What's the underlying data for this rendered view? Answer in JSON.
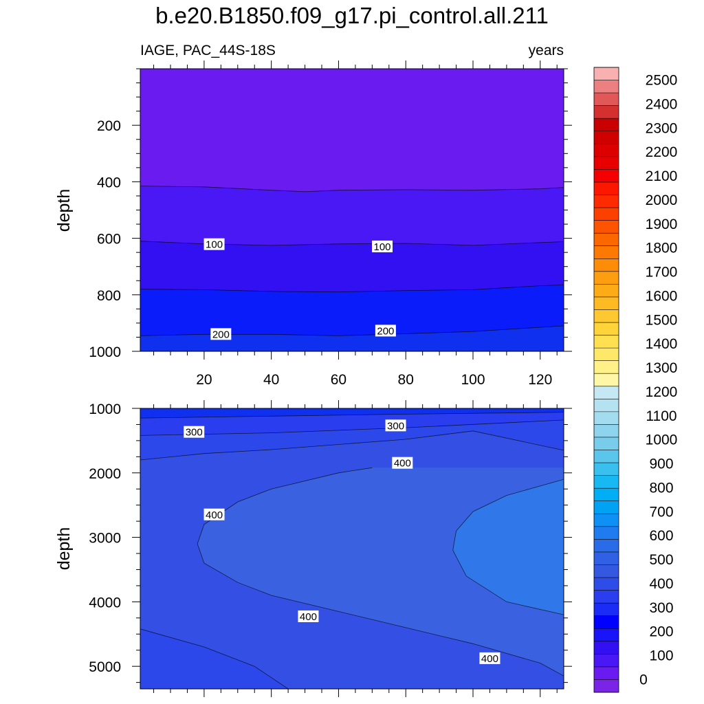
{
  "title": "b.e20.B1850.f09_g17.pi_control.all.211",
  "subtitle_left": "IAGE, PAC_44S-18S",
  "subtitle_right": "years",
  "chart_data": [
    {
      "type": "heatmap",
      "subtype": "filled-contour",
      "panel": "upper",
      "ylabel": "depth",
      "xlabel": "",
      "xlim": [
        1,
        127
      ],
      "ylim": [
        1000,
        0
      ],
      "x_ticks": [
        20,
        40,
        60,
        80,
        100,
        120
      ],
      "x_tick_labels": [
        "20",
        "40",
        "60",
        "80",
        "100",
        "120"
      ],
      "y_ticks": [
        200,
        400,
        600,
        800,
        1000
      ],
      "y_tick_labels": [
        "200",
        "400",
        "600",
        "800",
        "1000"
      ],
      "contours": [
        {
          "level": 50,
          "x": [
            1,
            20,
            40,
            50,
            60,
            80,
            100,
            120,
            127
          ],
          "depth": [
            415,
            418,
            430,
            435,
            430,
            428,
            430,
            425,
            420
          ]
        },
        {
          "level": 100,
          "x": [
            1,
            20,
            40,
            60,
            80,
            100,
            120,
            127
          ],
          "depth": [
            610,
            620,
            625,
            620,
            618,
            625,
            615,
            612
          ]
        },
        {
          "level": 150,
          "x": [
            1,
            20,
            40,
            60,
            80,
            100,
            120,
            127
          ],
          "depth": [
            780,
            782,
            788,
            790,
            785,
            782,
            768,
            765
          ]
        },
        {
          "level": 200,
          "x": [
            1,
            20,
            40,
            60,
            80,
            100,
            120,
            127
          ],
          "depth": [
            945,
            940,
            940,
            945,
            938,
            930,
            915,
            910
          ]
        }
      ],
      "contour_labels": [
        {
          "text": "100",
          "x": 23,
          "depth": 622
        },
        {
          "text": "100",
          "x": 73,
          "depth": 630
        },
        {
          "text": "200",
          "x": 25,
          "depth": 940
        },
        {
          "text": "200",
          "x": 74,
          "depth": 928
        }
      ]
    },
    {
      "type": "heatmap",
      "subtype": "filled-contour",
      "panel": "lower",
      "ylabel": "depth",
      "xlabel": "",
      "xlim": [
        1,
        127
      ],
      "ylim": [
        5350,
        1000
      ],
      "y_ticks": [
        1000,
        2000,
        3000,
        4000,
        5000
      ],
      "y_tick_labels": [
        "1000",
        "2000",
        "3000",
        "4000",
        "5000"
      ],
      "contours": [
        {
          "level": 250,
          "x": [
            1,
            40,
            80,
            127
          ],
          "depth": [
            1150,
            1120,
            1090,
            1060
          ]
        },
        {
          "level": 300,
          "x": [
            1,
            40,
            80,
            127
          ],
          "depth": [
            1420,
            1380,
            1300,
            1180
          ]
        },
        {
          "level": 350,
          "x": [
            1,
            20,
            40,
            60,
            80,
            100,
            127
          ],
          "depth": [
            1800,
            1700,
            1640,
            1560,
            1480,
            1350,
            1650
          ]
        },
        {
          "level": 400,
          "x": [
            70,
            60,
            40,
            30,
            20,
            18,
            20,
            30,
            40,
            60,
            80,
            100,
            120,
            127
          ],
          "depth": [
            1920,
            2000,
            2250,
            2450,
            2800,
            3100,
            3400,
            3700,
            3900,
            4150,
            4400,
            4650,
            4950,
            5150
          ]
        },
        {
          "level": 450,
          "x": [
            127,
            110,
            100,
            95,
            94,
            98,
            110,
            127
          ],
          "depth": [
            2100,
            2350,
            2600,
            2900,
            3200,
            3600,
            4000,
            4200
          ]
        },
        {
          "level": 350,
          "x": [
            1,
            20,
            35,
            45
          ],
          "depth": [
            4420,
            4700,
            5000,
            5350
          ]
        }
      ],
      "contour_labels": [
        {
          "text": "300",
          "x": 17,
          "depth": 1370
        },
        {
          "text": "300",
          "x": 77,
          "depth": 1270
        },
        {
          "text": "400",
          "x": 79,
          "depth": 1850
        },
        {
          "text": "400",
          "x": 23,
          "depth": 2650
        },
        {
          "text": "400",
          "x": 51,
          "depth": 4230
        },
        {
          "text": "400",
          "x": 105,
          "depth": 4880
        }
      ]
    }
  ],
  "colorbar": {
    "labels": [
      "0",
      "100",
      "200",
      "300",
      "400",
      "500",
      "600",
      "700",
      "800",
      "900",
      "1000",
      "1100",
      "1200",
      "1300",
      "1400",
      "1500",
      "1600",
      "1700",
      "1800",
      "1900",
      "2000",
      "2100",
      "2200",
      "2300",
      "2400",
      "2500"
    ],
    "colors": [
      "#7a24e8",
      "#6a1bf0",
      "#4a18f5",
      "#3210f2",
      "#1a14f8",
      "#0000ff",
      "#1a2cf5",
      "#2a3ef0",
      "#2e4ce8",
      "#3558e0",
      "#3060e4",
      "#2a6ce8",
      "#1e7cf0",
      "#0e90f4",
      "#00a2f4",
      "#00aef5",
      "#18b8f2",
      "#3ac0ee",
      "#5ac6ec",
      "#78cdea",
      "#8ed4ec",
      "#a2dcee",
      "#b4e2f0",
      "#c6e8f4",
      "#fff7a8",
      "#fff088",
      "#fee868",
      "#fee050",
      "#fed43a",
      "#fec830",
      "#feba22",
      "#fdac18",
      "#fd9e10",
      "#fd8c08",
      "#fc7a04",
      "#fc6800",
      "#fc5400",
      "#fc4000",
      "#fc2c00",
      "#fc1800",
      "#f40000",
      "#e80000",
      "#dc0000",
      "#d00000",
      "#c80000",
      "#d43030",
      "#e05858",
      "#ec8080",
      "#f8b0b0"
    ]
  },
  "band_colors": {
    "b0": "#7a24e8",
    "b1": "#6a1bf0",
    "b2": "#4a18f5",
    "b3": "#3210f2",
    "b4": "#1a14f8",
    "b5": "#0a1cfa",
    "b6": "#1030f0",
    "b7": "#2a3ef0",
    "b8": "#3450e4",
    "b9": "#3a62e0",
    "b10": "#3a66e6",
    "b11": "#3078ea"
  }
}
